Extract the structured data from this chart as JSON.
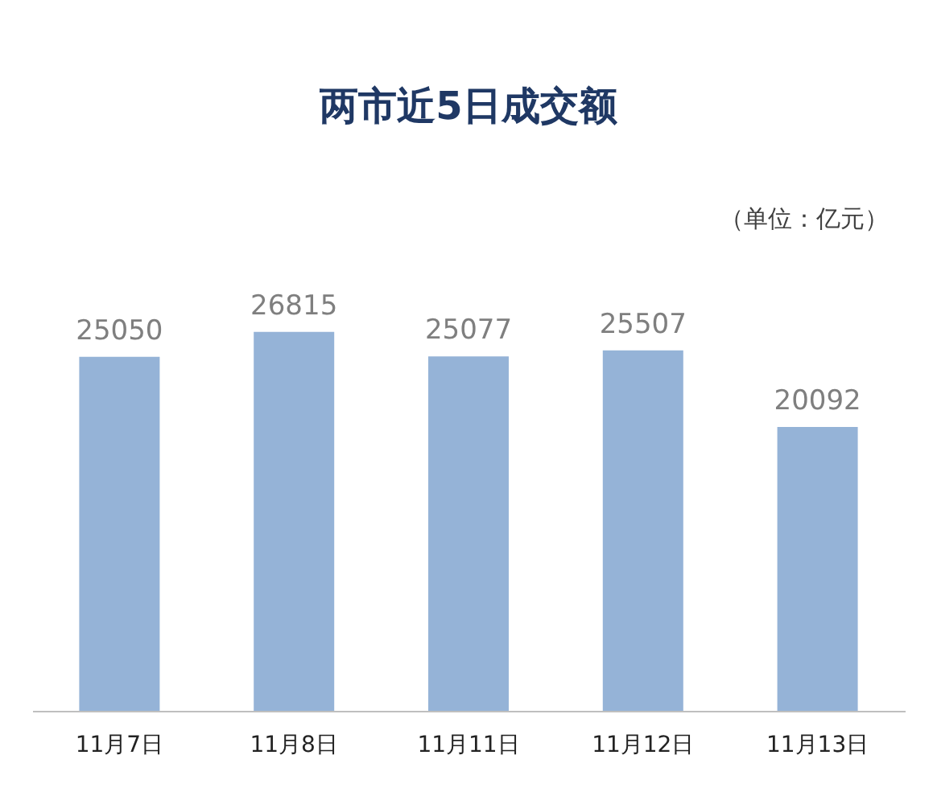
{
  "chart_data": {
    "type": "bar",
    "title": "两市近5日成交额",
    "annotations": [
      "（单位：亿元）"
    ],
    "categories": [
      "11月7日",
      "11月8日",
      "11月11日",
      "11月12日",
      "11月13日"
    ],
    "values": [
      25050,
      26815,
      25077,
      25507,
      20092
    ],
    "color": "#95b3d7",
    "data_labels": true
  }
}
